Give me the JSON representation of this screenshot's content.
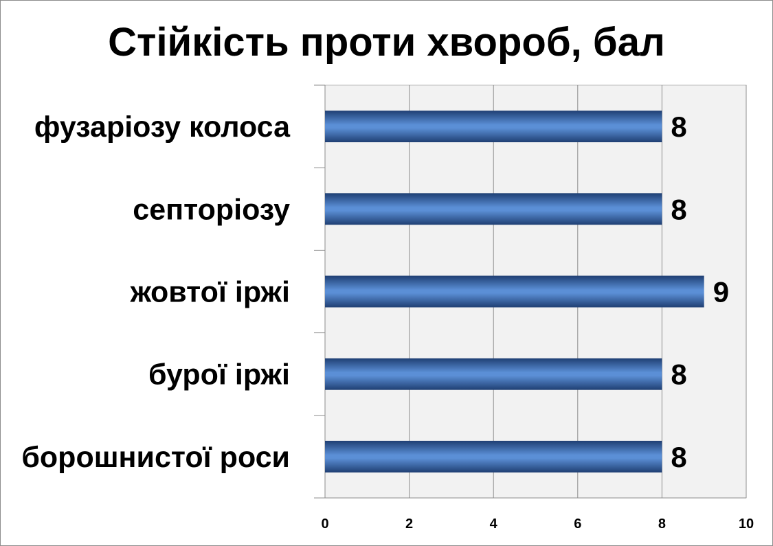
{
  "chart_data": {
    "type": "bar",
    "orientation": "horizontal",
    "title": "Стійкість проти хвороб, бал",
    "categories": [
      "фузаріозу колоса",
      "септоріозу",
      "жовтої іржі",
      "бурої іржі",
      "борошнистої роси"
    ],
    "values": [
      8,
      8,
      9,
      8,
      8
    ],
    "xlim": [
      0,
      10
    ],
    "xticks": [
      "0",
      "2",
      "4",
      "6",
      "8",
      "10"
    ],
    "grid": true,
    "legend": "none",
    "bar_color": "#3d6fb0",
    "plot_background": "#f2f2f2"
  }
}
